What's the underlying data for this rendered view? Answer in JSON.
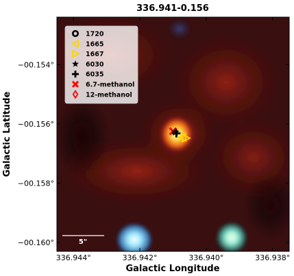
{
  "chart_data": {
    "type": "scatter",
    "title": "336.941-0.156",
    "xlabel": "Galactic Longitude",
    "ylabel": "Galactic Latitude",
    "xlim": [
      336.9445,
      336.9375
    ],
    "ylim": [
      -0.1603,
      -0.1524
    ],
    "xticks": [
      336.944,
      336.942,
      336.94,
      336.938
    ],
    "xtick_labels": [
      "336.944°",
      "336.942°",
      "336.940°",
      "336.938°"
    ],
    "yticks": [
      -0.154,
      -0.156,
      -0.158,
      -0.16
    ],
    "ytick_labels": [
      "−00.154°",
      "−00.156°",
      "−00.158°",
      "−00.160°"
    ],
    "legend_position": "top-left",
    "legend": [
      {
        "label": "1720",
        "marker": "circle-open",
        "color": "#000000"
      },
      {
        "label": "1665",
        "marker": "triangle-left-open",
        "color": "#ffd400"
      },
      {
        "label": "1667",
        "marker": "triangle-right-open",
        "color": "#ffd400"
      },
      {
        "label": "6030",
        "marker": "star",
        "color": "#000000"
      },
      {
        "label": "6035",
        "marker": "plus",
        "color": "#000000"
      },
      {
        "label": "6.7-methanol",
        "marker": "x",
        "color": "#ff0000"
      },
      {
        "label": "12-methanol",
        "marker": "diamond-open",
        "color": "#ff0000"
      }
    ],
    "points": [
      {
        "series": "6.7-methanol",
        "x": 336.941,
        "y": -0.15625
      },
      {
        "series": "1665",
        "x": 336.94072,
        "y": -0.15645
      },
      {
        "series": "1667",
        "x": 336.94062,
        "y": -0.15648
      },
      {
        "series": "6030",
        "x": 336.94093,
        "y": -0.15628
      },
      {
        "series": "6035",
        "x": 336.9409,
        "y": -0.15632
      }
    ],
    "scale_bar": {
      "label": "5\""
    },
    "background": "three-colour infrared image",
    "grid": false
  }
}
